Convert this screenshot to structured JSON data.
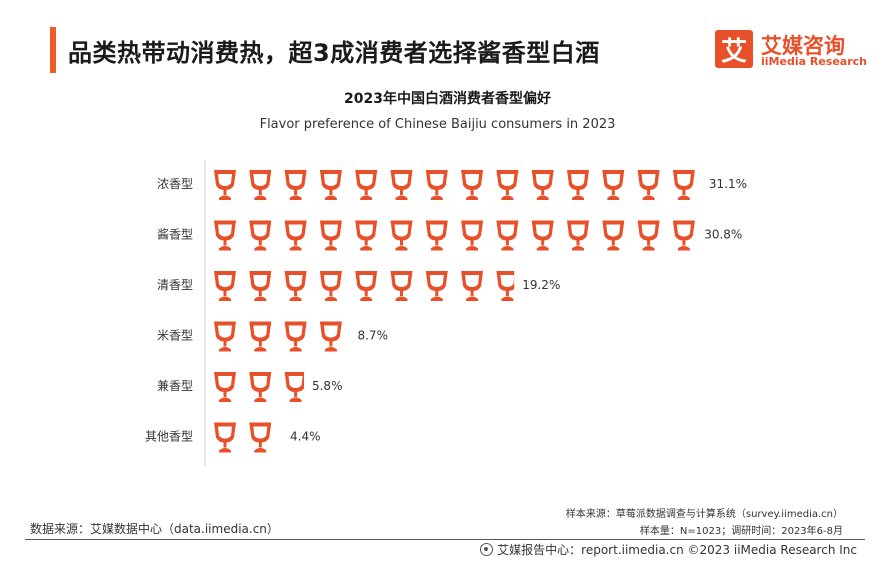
{
  "header": {
    "title": "品类热带动消费热，超3成消费者选择酱香型白酒",
    "logo_char": "艾",
    "logo_cn": "艾媒咨询",
    "logo_en": "iiMedia Research"
  },
  "chart_data": {
    "type": "bar",
    "title": "2023年中国白酒消费者香型偏好",
    "subtitle": "Flavor preference of Chinese Baijiu consumers in 2023",
    "categories": [
      "浓香型",
      "酱香型",
      "清香型",
      "米香型",
      "兼香型",
      "其他香型"
    ],
    "values": [
      31.1,
      30.8,
      19.2,
      8.7,
      5.8,
      4.4
    ],
    "value_labels": [
      "31.1%",
      "30.8%",
      "19.2%",
      "8.7%",
      "5.8%",
      "4.4%"
    ],
    "unit": "%",
    "orientation": "horizontal",
    "marker": "wine-glass-icon",
    "color": "#e8502a",
    "xlim": [
      0,
      35
    ]
  },
  "sources": {
    "sample_source": "样本来源：草莓派数据调查与计算系统（survey.iimedia.cn）",
    "sample_size": "样本量：N=1023；调研时间：2023年6-8月",
    "data_source": "数据来源：艾媒数据中心（data.iimedia.cn）"
  },
  "footer": {
    "text": "艾媒报告中心：report.iimedia.cn  ©2023  iiMedia Research  Inc"
  }
}
